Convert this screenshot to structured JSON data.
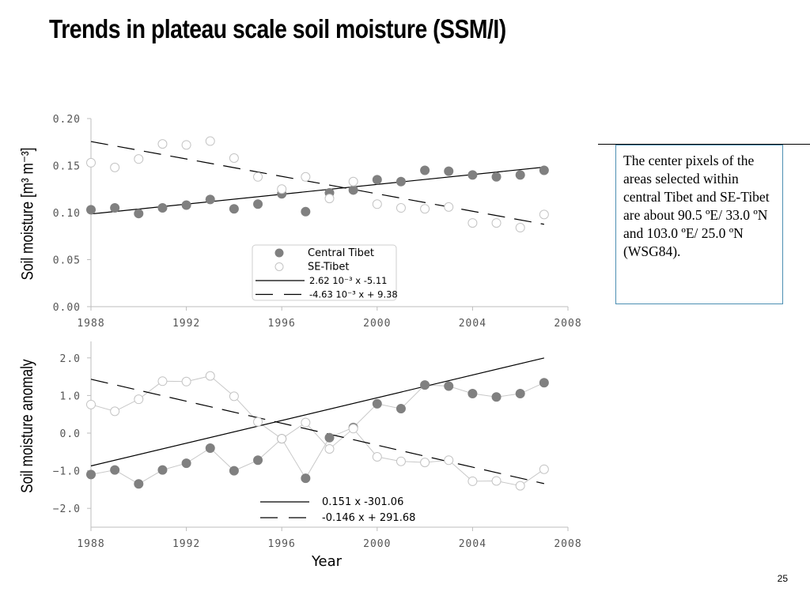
{
  "title": "Trends in plateau scale soil moisture (SSM/I)",
  "note": "The center pixels of the areas selected within central Tibet and SE-Tibet are about 90.5 ºE/ 33.0 ºN and 103.0 ºE/ 25.0 ºN (WSG84).",
  "page_number": "25",
  "chart_data": [
    {
      "type": "scatter",
      "ylabel": "Soil moisture [m³ m⁻³]",
      "xlabel": "",
      "xlim": [
        1988,
        2008
      ],
      "ylim": [
        0.0,
        0.2
      ],
      "x_ticks": [
        "1988",
        "1992",
        "1996",
        "2000",
        "2004",
        "2008"
      ],
      "y_ticks": [
        "0.00",
        "0.05",
        "0.10",
        "0.15",
        "0.20"
      ],
      "x": [
        1988,
        1989,
        1990,
        1991,
        1992,
        1993,
        1994,
        1995,
        1996,
        1997,
        1998,
        1999,
        2000,
        2001,
        2002,
        2003,
        2004,
        2005,
        2006,
        2007
      ],
      "series": [
        {
          "name": "Central Tibet",
          "marker": "filled-circle",
          "color": "#808080",
          "values": [
            0.103,
            0.105,
            0.099,
            0.105,
            0.108,
            0.114,
            0.104,
            0.109,
            0.12,
            0.101,
            0.121,
            0.124,
            0.135,
            0.133,
            0.145,
            0.144,
            0.14,
            0.138,
            0.14,
            0.145
          ]
        },
        {
          "name": "SE-Tibet",
          "marker": "open-circle",
          "color": "#ffffff",
          "values": [
            0.153,
            0.148,
            0.157,
            0.173,
            0.172,
            0.176,
            0.158,
            0.138,
            0.125,
            0.138,
            0.115,
            0.133,
            0.109,
            0.105,
            0.104,
            0.106,
            0.089,
            0.089,
            0.084,
            0.098
          ]
        }
      ],
      "trend_lines": [
        {
          "label": "2.62 10⁻³ x -5.11",
          "style": "solid",
          "slope": 0.00262,
          "intercept": -5.11
        },
        {
          "label": "-4.63 10⁻³ x + 9.38",
          "style": "dashed",
          "slope": -0.00463,
          "intercept": 9.38
        }
      ],
      "legend": "bottom-center"
    },
    {
      "type": "line",
      "ylabel": "Soil moisture anomaly",
      "xlabel": "Year",
      "xlim": [
        1988,
        2008
      ],
      "ylim": [
        -2.5,
        2.5
      ],
      "x_ticks": [
        "1988",
        "1992",
        "1996",
        "2000",
        "2004",
        "2008"
      ],
      "y_ticks": [
        "2.0",
        "1.0",
        "0.0",
        "−1.0",
        "−2.0"
      ],
      "x": [
        1988,
        1989,
        1990,
        1991,
        1992,
        1993,
        1994,
        1995,
        1996,
        1997,
        1998,
        1999,
        2000,
        2001,
        2002,
        2003,
        2004,
        2005,
        2006,
        2007
      ],
      "series": [
        {
          "name": "Central Tibet",
          "marker": "filled-circle",
          "color": "#808080",
          "values": [
            -1.1,
            -0.98,
            -1.35,
            -0.98,
            -0.8,
            -0.4,
            -1.0,
            -0.72,
            -0.15,
            -1.2,
            -0.12,
            0.15,
            0.78,
            0.65,
            1.28,
            1.25,
            1.05,
            0.96,
            1.05,
            1.34
          ]
        },
        {
          "name": "SE-Tibet",
          "marker": "open-circle",
          "color": "#ffffff",
          "values": [
            0.76,
            0.58,
            0.9,
            1.38,
            1.37,
            1.52,
            0.98,
            0.3,
            -0.15,
            0.28,
            -0.42,
            0.12,
            -0.63,
            -0.75,
            -0.78,
            -0.72,
            -1.28,
            -1.27,
            -1.4,
            -0.96
          ]
        }
      ],
      "trend_lines": [
        {
          "label": "0.151 x -301.06",
          "style": "solid",
          "slope": 0.151,
          "intercept": -301.06
        },
        {
          "label": "-0.146 x + 291.68",
          "style": "dashed",
          "slope": -0.146,
          "intercept": 291.68
        }
      ],
      "legend": "bottom-center"
    }
  ]
}
